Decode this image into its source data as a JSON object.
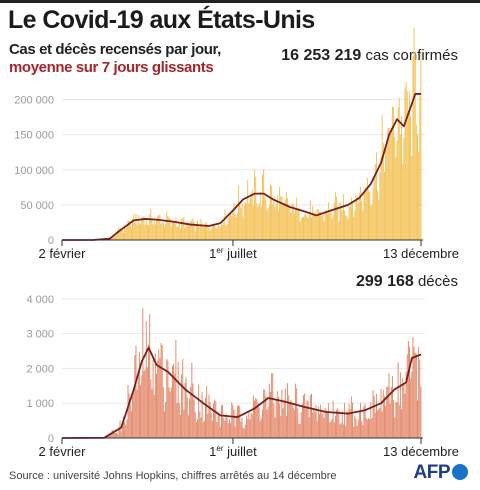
{
  "title": "Le Covid-19 aux États-Unis",
  "subtitle_line1": "Cas et décès recensés par jour,",
  "subtitle_line2": "moyenne sur 7 jours glissants",
  "source": "Source : université Johns Hopkins, chiffres arrêtés au 14 décembre",
  "brand": "AFP",
  "colors": {
    "cases_bars": "#f4c257",
    "deaths_bars": "#e48a6c",
    "avg_line": "#7a1e1e",
    "subtitle_accent": "#a2262b",
    "brand_blue": "#1572c7"
  },
  "chart_data": [
    {
      "type": "bar",
      "totals_value": "16 253 219",
      "totals_label": "cas confirmés",
      "x_labels": [
        {
          "main": "2 février",
          "sup": ""
        },
        {
          "main": "1",
          "sup": "er",
          "tail": " juillet"
        },
        {
          "main": "13 décembre",
          "sup": ""
        }
      ],
      "ylim": [
        0,
        225000
      ],
      "y_ticks": [
        "0",
        "50 000",
        "100 000",
        "150 000",
        "200 000"
      ],
      "y_tick_values": [
        0,
        50000,
        100000,
        150000,
        200000
      ],
      "x_range": [
        "2020-02-02",
        "2020-12-13"
      ],
      "series": [
        {
          "name": "moyenne sur 7 jours glissants",
          "points": [
            [
              "2020-02-02",
              0
            ],
            [
              "2020-03-01",
              100
            ],
            [
              "2020-03-15",
              2000
            ],
            [
              "2020-03-25",
              15000
            ],
            [
              "2020-04-05",
              28000
            ],
            [
              "2020-04-15",
              30000
            ],
            [
              "2020-04-25",
              29000
            ],
            [
              "2020-05-10",
              26000
            ],
            [
              "2020-05-25",
              22000
            ],
            [
              "2020-06-10",
              20000
            ],
            [
              "2020-06-20",
              24000
            ],
            [
              "2020-07-01",
              42000
            ],
            [
              "2020-07-10",
              58000
            ],
            [
              "2020-07-20",
              66000
            ],
            [
              "2020-07-28",
              66000
            ],
            [
              "2020-08-05",
              58000
            ],
            [
              "2020-08-20",
              47000
            ],
            [
              "2020-09-05",
              39000
            ],
            [
              "2020-09-12",
              35000
            ],
            [
              "2020-09-25",
              42000
            ],
            [
              "2020-10-10",
              50000
            ],
            [
              "2020-10-20",
              60000
            ],
            [
              "2020-10-30",
              80000
            ],
            [
              "2020-11-08",
              110000
            ],
            [
              "2020-11-15",
              150000
            ],
            [
              "2020-11-22",
              172000
            ],
            [
              "2020-11-28",
              162000
            ],
            [
              "2020-12-03",
              185000
            ],
            [
              "2020-12-08",
              208000
            ],
            [
              "2020-12-13",
              208000
            ]
          ]
        }
      ]
    },
    {
      "type": "bar",
      "totals_value": "299 168",
      "totals_label": "décès",
      "x_labels": [
        {
          "main": "2 février",
          "sup": ""
        },
        {
          "main": "1",
          "sup": "er",
          "tail": " juillet"
        },
        {
          "main": "13 décembre",
          "sup": ""
        }
      ],
      "ylim": [
        0,
        4600
      ],
      "y_ticks": [
        "0",
        "1 000",
        "2 000",
        "3 000",
        "4 000"
      ],
      "y_tick_values": [
        0,
        1000,
        2000,
        3000,
        4000
      ],
      "x_range": [
        "2020-02-02",
        "2020-12-13"
      ],
      "series": [
        {
          "name": "moyenne sur 7 jours glissants",
          "points": [
            [
              "2020-02-02",
              0
            ],
            [
              "2020-03-10",
              5
            ],
            [
              "2020-03-25",
              300
            ],
            [
              "2020-04-05",
              1400
            ],
            [
              "2020-04-12",
              2200
            ],
            [
              "2020-04-18",
              2600
            ],
            [
              "2020-04-25",
              2100
            ],
            [
              "2020-05-05",
              1900
            ],
            [
              "2020-05-20",
              1400
            ],
            [
              "2020-06-05",
              1000
            ],
            [
              "2020-06-20",
              650
            ],
            [
              "2020-07-05",
              600
            ],
            [
              "2020-07-20",
              850
            ],
            [
              "2020-08-01",
              1150
            ],
            [
              "2020-08-15",
              1050
            ],
            [
              "2020-09-01",
              900
            ],
            [
              "2020-09-20",
              750
            ],
            [
              "2020-10-10",
              700
            ],
            [
              "2020-10-25",
              800
            ],
            [
              "2020-11-08",
              1000
            ],
            [
              "2020-11-20",
              1400
            ],
            [
              "2020-11-30",
              1600
            ],
            [
              "2020-12-05",
              2300
            ],
            [
              "2020-12-13",
              2400
            ]
          ]
        }
      ]
    }
  ]
}
